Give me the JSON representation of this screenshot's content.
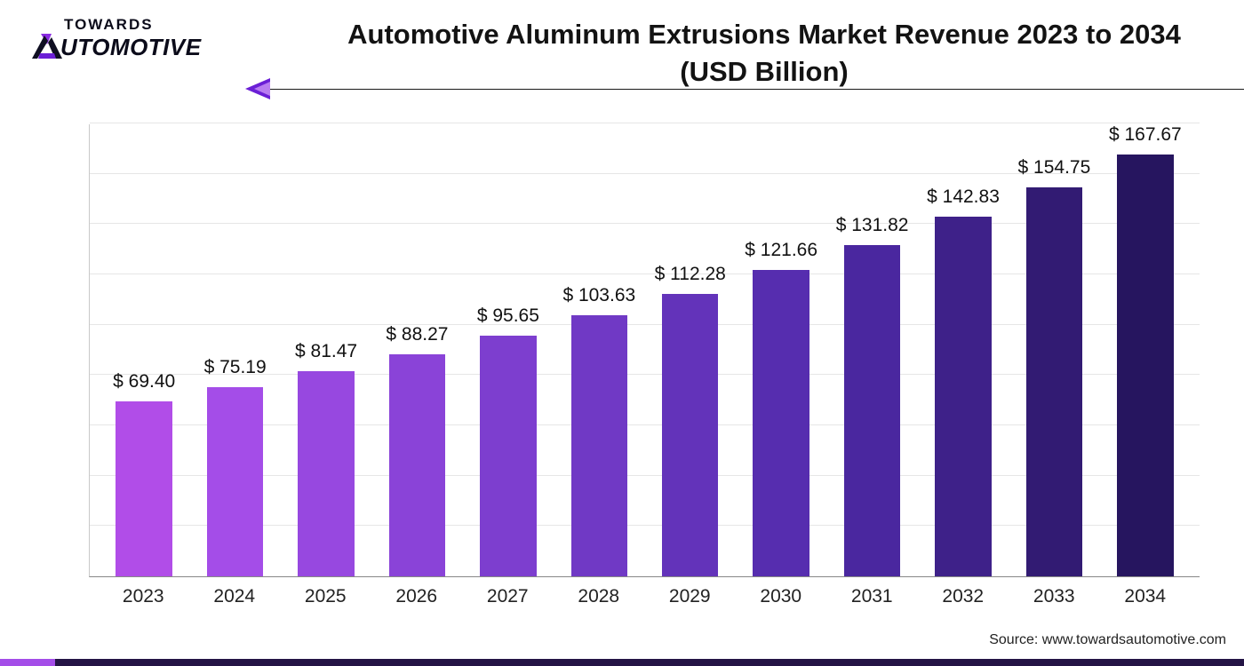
{
  "logo": {
    "line1": "TOWARDS",
    "line2": "UTOMOTIVE",
    "accent_colors": [
      "#8a2be2",
      "#6b1fd6",
      "#0f0f22"
    ]
  },
  "title": {
    "line1": "Automotive Aluminum Extrusions Market Revenue 2023 to 2034",
    "line2": "(USD Billion)",
    "fontsize": 31,
    "color": "#131313"
  },
  "arrow": {
    "line_color": "#1a1a1a",
    "head_outer": "#6b1fd6",
    "head_inner": "#b97df0"
  },
  "chart": {
    "type": "bar",
    "categories": [
      "2023",
      "2024",
      "2025",
      "2026",
      "2027",
      "2028",
      "2029",
      "2030",
      "2031",
      "2032",
      "2033",
      "2034"
    ],
    "values": [
      69.4,
      75.19,
      81.47,
      88.27,
      95.65,
      103.63,
      112.28,
      121.66,
      131.82,
      142.83,
      154.75,
      167.67
    ],
    "value_labels": [
      "$ 69.40",
      "$ 75.19",
      "$ 81.47",
      "$ 88.27",
      "$ 95.65",
      "$ 103.63",
      "$ 112.28",
      "$ 121.66",
      "$ 131.82",
      "$ 142.83",
      "$ 154.75",
      "$ 167.67"
    ],
    "bar_colors": [
      "#b14de8",
      "#a44de8",
      "#9748e0",
      "#8a43d8",
      "#7d3ecf",
      "#7039c5",
      "#6333ba",
      "#562daf",
      "#4a279f",
      "#3e2189",
      "#321b73",
      "#26155f"
    ],
    "ylim": [
      0,
      180
    ],
    "grid_steps": 9,
    "grid_color": "#e6e6e6",
    "axis_color": "#888",
    "label_fontsize": 21,
    "x_tick_fontsize": 21,
    "background_color": "#ffffff",
    "bar_width_pct": 62
  },
  "source": {
    "text": "Source: www.towardsautomotive.com",
    "fontsize": 16,
    "color": "#222"
  },
  "footer": {
    "bar_color": "#241445",
    "accent_color": "#a44de8"
  }
}
